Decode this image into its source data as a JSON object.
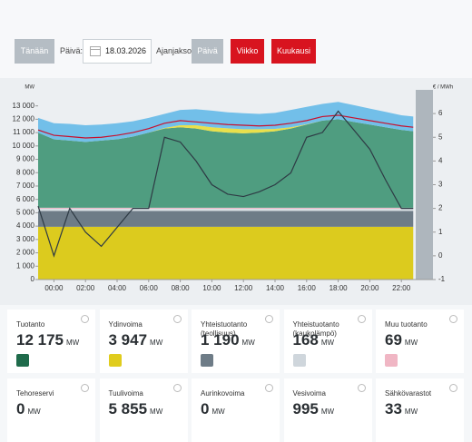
{
  "controls": {
    "today": "Tänään",
    "day_label": "Päivä:",
    "date": "18.03.2026",
    "period_label": "Ajanjakso:",
    "day": "Päivä",
    "week": "Viikko",
    "month": "Kuukausi"
  },
  "chart_data": {
    "type": "stacked-area",
    "y_label": "MW",
    "y2_label": "€ / MWh",
    "x": [
      -1,
      0,
      1,
      2,
      3,
      4,
      5,
      6,
      7,
      8,
      9,
      10,
      11,
      12,
      13,
      14,
      15,
      16,
      17,
      18,
      19,
      20,
      21,
      22,
      22.75
    ],
    "xlim": [
      -1,
      24
    ],
    "xticks": [
      {
        "value": 0,
        "label": "00:00"
      },
      {
        "value": 2,
        "label": "02:00"
      },
      {
        "value": 4,
        "label": "04:00"
      },
      {
        "value": 6,
        "label": "06:00"
      },
      {
        "value": 8,
        "label": "08:00"
      },
      {
        "value": 10,
        "label": "10:00"
      },
      {
        "value": 12,
        "label": "12:00"
      },
      {
        "value": 14,
        "label": "14:00"
      },
      {
        "value": 16,
        "label": "16:00"
      },
      {
        "value": 18,
        "label": "18:00"
      },
      {
        "value": 20,
        "label": "20:00"
      },
      {
        "value": 22,
        "label": "22:00"
      }
    ],
    "ylim": [
      0,
      14200
    ],
    "yticks": [
      0,
      {
        "value": 1000,
        "label": "1 000"
      },
      {
        "value": 2000,
        "label": "2 000"
      },
      {
        "value": 3000,
        "label": "3 000"
      },
      {
        "value": 4000,
        "label": "4 000"
      },
      {
        "value": 5000,
        "label": "5 000"
      },
      {
        "value": 6000,
        "label": "6 000"
      },
      {
        "value": 7000,
        "label": "7 000"
      },
      {
        "value": 8000,
        "label": "8 000"
      },
      {
        "value": 9000,
        "label": "9 000"
      },
      {
        "value": 10000,
        "label": "10 000"
      },
      {
        "value": 11000,
        "label": "11 000"
      },
      {
        "value": 12000,
        "label": "12 000"
      },
      {
        "value": 13000,
        "label": "13 000"
      }
    ],
    "y2lim": [
      -1,
      7
    ],
    "y2ticks": [
      -1,
      0,
      1,
      2,
      3,
      4,
      5,
      6
    ],
    "series": [
      {
        "color": "#dccb1e",
        "stack": true,
        "values": [
          3950,
          3950,
          3950,
          3950,
          3950,
          3950,
          3950,
          3950,
          3950,
          3950,
          3950,
          3950,
          3950,
          3950,
          3950,
          3950,
          3950,
          3950,
          3950,
          3950,
          3950,
          3950,
          3950,
          3950,
          3950
        ]
      },
      {
        "color": "#6e7c87",
        "stack": true,
        "values": [
          1190,
          1190,
          1190,
          1190,
          1190,
          1190,
          1190,
          1190,
          1190,
          1190,
          1190,
          1190,
          1190,
          1190,
          1190,
          1190,
          1190,
          1190,
          1190,
          1190,
          1190,
          1190,
          1190,
          1190,
          1190
        ]
      },
      {
        "color": "#d9dfe4",
        "stack": true,
        "values": [
          168,
          168,
          168,
          168,
          168,
          168,
          168,
          168,
          168,
          168,
          168,
          168,
          168,
          168,
          168,
          168,
          168,
          168,
          168,
          168,
          168,
          168,
          168,
          168,
          168
        ]
      },
      {
        "color": "#eab3c2",
        "stack": true,
        "values": [
          69,
          69,
          69,
          69,
          69,
          69,
          69,
          69,
          69,
          69,
          69,
          69,
          69,
          69,
          69,
          69,
          69,
          69,
          69,
          69,
          69,
          69,
          69,
          69,
          69
        ]
      },
      {
        "color": "#4f9d80",
        "stack": true,
        "values": [
          5623,
          5123,
          5023,
          4923,
          5023,
          5123,
          5323,
          5623,
          5923,
          6023,
          5923,
          5723,
          5623,
          5573,
          5623,
          5723,
          5923,
          6223,
          6523,
          6623,
          6423,
          6223,
          6023,
          5823,
          5723
        ]
      },
      {
        "color": "#e9e04b",
        "stack": true,
        "values": [
          0,
          0,
          0,
          0,
          0,
          0,
          0,
          0,
          50,
          150,
          250,
          300,
          320,
          300,
          250,
          180,
          100,
          30,
          0,
          0,
          0,
          0,
          0,
          0,
          0
        ]
      },
      {
        "color": "#72bfe9",
        "stack": true,
        "values": [
          1100,
          1200,
          1250,
          1250,
          1200,
          1200,
          1150,
          1100,
          1050,
          1150,
          1200,
          1250,
          1200,
          1200,
          1150,
          1200,
          1300,
          1300,
          1250,
          1300,
          1250,
          1200,
          1150,
          1100,
          1100
        ]
      },
      {
        "color": "#c8102e",
        "stack": false,
        "values": [
          11200,
          10800,
          10700,
          10600,
          10650,
          10800,
          11000,
          11300,
          11700,
          11900,
          11800,
          11700,
          11600,
          11550,
          11500,
          11550,
          11700,
          11900,
          12200,
          12300,
          12100,
          11900,
          11700,
          11500,
          11400
        ]
      },
      {
        "color": "#2e3a44",
        "stack": false,
        "axis": "y2",
        "values": [
          2.1,
          0.0,
          2.0,
          1.0,
          0.4,
          1.2,
          2.0,
          2.0,
          5.0,
          4.8,
          4.0,
          3.0,
          2.6,
          2.5,
          2.7,
          3.0,
          3.5,
          5.0,
          5.2,
          6.1,
          5.3,
          4.5,
          3.2,
          2.0,
          2.0
        ]
      }
    ]
  },
  "cards": [
    {
      "label": "Tuotanto",
      "value": "12 175",
      "unit": "MW"
    },
    {
      "label": "Ydinvoima",
      "value": "3 947",
      "unit": "MW"
    },
    {
      "label": "Yhteistuotanto (teollisuus)",
      "value": "1 190",
      "unit": "MW"
    },
    {
      "label": "Yhteistuotanto (kaukolämpö)",
      "value": "168",
      "unit": "MW"
    },
    {
      "label": "Muu tuotanto",
      "value": "69",
      "unit": "MW"
    },
    {
      "label": "Tehoreservi",
      "value": "0",
      "unit": "MW"
    },
    {
      "label": "Tuulivoima",
      "value": "5 855",
      "unit": "MW"
    },
    {
      "label": "Aurinkovoima",
      "value": "0",
      "unit": "MW"
    },
    {
      "label": "Vesivoima",
      "value": "995",
      "unit": "MW"
    },
    {
      "label": "Sähkövarastot",
      "value": "33",
      "unit": "MW"
    }
  ]
}
